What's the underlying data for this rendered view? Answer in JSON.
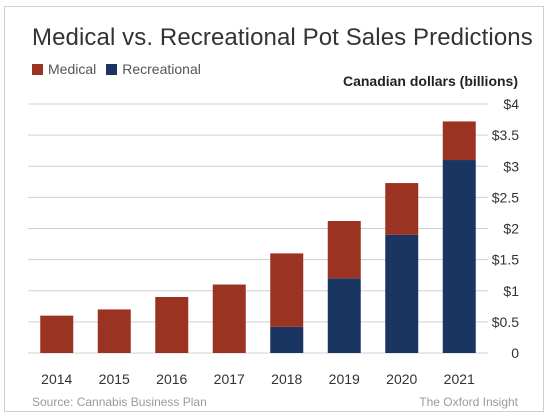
{
  "colors": {
    "medical": "#9b3322",
    "recreational": "#1b3563",
    "grid": "#d0d0d0",
    "axis_text": "#333333"
  },
  "header": {
    "title": "Medical vs. Recreational Pot Sales Predictions",
    "unit_label": "Canadian dollars (billions)"
  },
  "legend": {
    "items": [
      {
        "label": "Medical",
        "color_key": "medical"
      },
      {
        "label": "Recreational",
        "color_key": "recreational"
      }
    ]
  },
  "footer": {
    "source": "Source: Cannabis Business Plan",
    "credit": "The Oxford Insight"
  },
  "chart_data": {
    "type": "bar",
    "stacked": true,
    "title": "Medical vs. Recreational Pot Sales Predictions",
    "xlabel": "",
    "ylabel": "Canadian dollars (billions)",
    "categories": [
      "2014",
      "2015",
      "2016",
      "2017",
      "2018",
      "2019",
      "2020",
      "2021"
    ],
    "series": [
      {
        "name": "Recreational",
        "values": [
          0,
          0,
          0,
          0,
          0.42,
          1.2,
          1.9,
          3.1
        ]
      },
      {
        "name": "Medical",
        "values": [
          0.6,
          0.7,
          0.9,
          1.1,
          1.18,
          0.92,
          0.83,
          0.62
        ]
      }
    ],
    "ylim": [
      0,
      4
    ],
    "yticks": [
      0,
      0.5,
      1,
      1.5,
      2,
      2.5,
      3,
      3.5,
      4
    ],
    "ytick_labels": [
      "0",
      "$0.5",
      "$1",
      "$1.5",
      "$2",
      "$2.5",
      "$3",
      "$3.5",
      "$4"
    ],
    "y_axis_position": "right",
    "grid": true,
    "legend_position": "top-left"
  }
}
